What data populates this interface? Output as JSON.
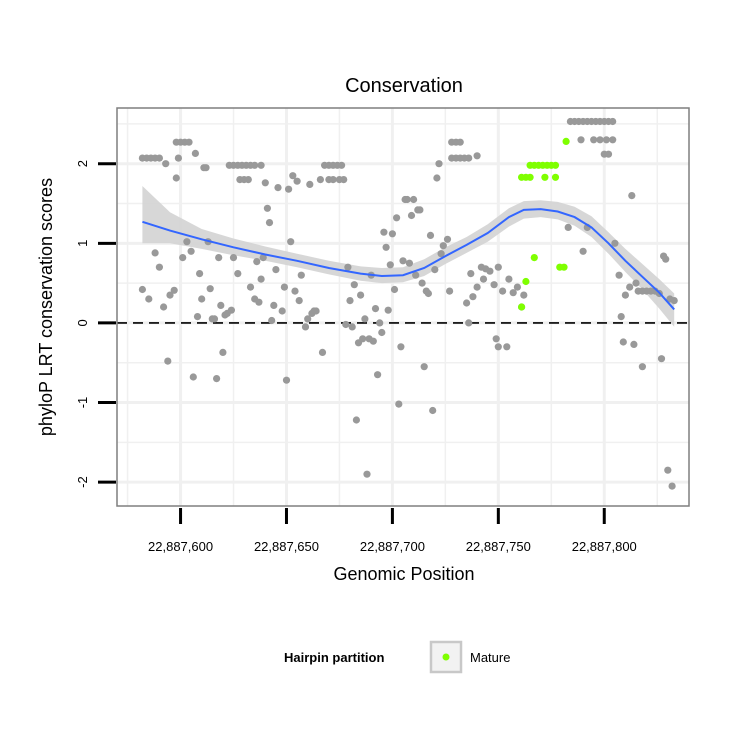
{
  "chart_data": {
    "type": "scatter",
    "title": "Conservation",
    "xlabel": "Genomic Position",
    "ylabel": "phyloP LRT conservation scores",
    "xlim": [
      22887570,
      22887840
    ],
    "ylim": [
      -2.3,
      2.7
    ],
    "x_ticks": [
      22887600,
      22887650,
      22887700,
      22887750,
      22887800
    ],
    "x_tick_labels": [
      "22,887,600",
      "22,887,650",
      "22,887,700",
      "22,887,750",
      "22,887,800"
    ],
    "y_ticks": [
      -2,
      -1,
      0,
      1,
      2
    ],
    "y_tick_labels": [
      "-2",
      "-1",
      "0",
      "1",
      "2"
    ],
    "grid": true,
    "reference_line": {
      "y": 0,
      "style": "dashed"
    },
    "colors": {
      "other": "#999999",
      "mature": "#7fff00",
      "smooth": "#3366ff",
      "ribbon": "#d3d3d3",
      "grid": "#f0f0f0"
    },
    "series": [
      {
        "key": "other",
        "points": [
          [
            22887582,
            2.07
          ],
          [
            22887584,
            2.07
          ],
          [
            22887586,
            2.07
          ],
          [
            22887588,
            2.07
          ],
          [
            22887590,
            2.07
          ],
          [
            22887593,
            2.0
          ],
          [
            22887582,
            0.42
          ],
          [
            22887585,
            0.3
          ],
          [
            22887588,
            0.88
          ],
          [
            22887590,
            0.7
          ],
          [
            22887592,
            0.2
          ],
          [
            22887594,
            -0.48
          ],
          [
            22887595,
            0.35
          ],
          [
            22887597,
            0.41
          ],
          [
            22887598,
            1.82
          ],
          [
            22887598,
            2.27
          ],
          [
            22887600,
            2.27
          ],
          [
            22887602,
            2.27
          ],
          [
            22887604,
            2.27
          ],
          [
            22887599,
            2.07
          ],
          [
            22887601,
            0.82
          ],
          [
            22887603,
            1.02
          ],
          [
            22887605,
            0.9
          ],
          [
            22887606,
            -0.68
          ],
          [
            22887607,
            2.13
          ],
          [
            22887608,
            0.08
          ],
          [
            22887609,
            0.62
          ],
          [
            22887610,
            0.3
          ],
          [
            22887611,
            1.95
          ],
          [
            22887612,
            1.95
          ],
          [
            22887613,
            1.02
          ],
          [
            22887614,
            0.43
          ],
          [
            22887615,
            0.05
          ],
          [
            22887616,
            0.05
          ],
          [
            22887617,
            -0.7
          ],
          [
            22887618,
            0.82
          ],
          [
            22887619,
            0.22
          ],
          [
            22887620,
            -0.37
          ],
          [
            22887621,
            0.1
          ],
          [
            22887622,
            0.12
          ],
          [
            22887623,
            1.98
          ],
          [
            22887625,
            1.98
          ],
          [
            22887627,
            1.98
          ],
          [
            22887629,
            1.98
          ],
          [
            22887631,
            1.98
          ],
          [
            22887633,
            1.98
          ],
          [
            22887635,
            1.98
          ],
          [
            22887638,
            1.98
          ],
          [
            22887624,
            0.16
          ],
          [
            22887625,
            0.82
          ],
          [
            22887627,
            0.62
          ],
          [
            22887628,
            1.8
          ],
          [
            22887630,
            1.8
          ],
          [
            22887632,
            1.8
          ],
          [
            22887633,
            0.45
          ],
          [
            22887635,
            0.3
          ],
          [
            22887636,
            0.77
          ],
          [
            22887637,
            0.26
          ],
          [
            22887638,
            0.55
          ],
          [
            22887639,
            0.82
          ],
          [
            22887640,
            1.76
          ],
          [
            22887641,
            1.44
          ],
          [
            22887642,
            1.26
          ],
          [
            22887643,
            0.03
          ],
          [
            22887644,
            0.22
          ],
          [
            22887645,
            0.67
          ],
          [
            22887646,
            1.7
          ],
          [
            22887648,
            0.15
          ],
          [
            22887649,
            0.45
          ],
          [
            22887650,
            -0.72
          ],
          [
            22887651,
            1.68
          ],
          [
            22887652,
            1.02
          ],
          [
            22887653,
            1.85
          ],
          [
            22887654,
            0.4
          ],
          [
            22887655,
            1.78
          ],
          [
            22887656,
            0.28
          ],
          [
            22887657,
            0.6
          ],
          [
            22887659,
            -0.05
          ],
          [
            22887660,
            0.05
          ],
          [
            22887661,
            1.74
          ],
          [
            22887662,
            0.12
          ],
          [
            22887663,
            0.15
          ],
          [
            22887664,
            0.15
          ],
          [
            22887666,
            1.8
          ],
          [
            22887667,
            -0.37
          ],
          [
            22887668,
            1.98
          ],
          [
            22887670,
            1.98
          ],
          [
            22887672,
            1.98
          ],
          [
            22887674,
            1.98
          ],
          [
            22887676,
            1.98
          ],
          [
            22887670,
            1.8
          ],
          [
            22887672,
            1.8
          ],
          [
            22887675,
            1.8
          ],
          [
            22887677,
            1.8
          ],
          [
            22887678,
            -0.02
          ],
          [
            22887679,
            0.7
          ],
          [
            22887680,
            0.28
          ],
          [
            22887681,
            -0.05
          ],
          [
            22887682,
            0.48
          ],
          [
            22887683,
            -1.22
          ],
          [
            22887684,
            -0.25
          ],
          [
            22887685,
            0.35
          ],
          [
            22887686,
            -0.2
          ],
          [
            22887687,
            0.05
          ],
          [
            22887688,
            -1.9
          ],
          [
            22887689,
            -0.2
          ],
          [
            22887690,
            0.6
          ],
          [
            22887691,
            -0.23
          ],
          [
            22887692,
            0.18
          ],
          [
            22887693,
            -0.65
          ],
          [
            22887694,
            0.0
          ],
          [
            22887695,
            -0.12
          ],
          [
            22887696,
            1.14
          ],
          [
            22887697,
            0.95
          ],
          [
            22887698,
            0.16
          ],
          [
            22887699,
            0.73
          ],
          [
            22887700,
            1.12
          ],
          [
            22887701,
            0.42
          ],
          [
            22887702,
            1.32
          ],
          [
            22887703,
            -1.02
          ],
          [
            22887704,
            -0.3
          ],
          [
            22887705,
            0.78
          ],
          [
            22887706,
            1.55
          ],
          [
            22887707,
            1.55
          ],
          [
            22887708,
            0.75
          ],
          [
            22887709,
            1.35
          ],
          [
            22887710,
            1.55
          ],
          [
            22887711,
            0.6
          ],
          [
            22887712,
            1.42
          ],
          [
            22887713,
            1.42
          ],
          [
            22887714,
            0.5
          ],
          [
            22887715,
            -0.55
          ],
          [
            22887716,
            0.4
          ],
          [
            22887717,
            0.37
          ],
          [
            22887718,
            1.1
          ],
          [
            22887719,
            -1.1
          ],
          [
            22887720,
            0.67
          ],
          [
            22887721,
            1.82
          ],
          [
            22887722,
            2.0
          ],
          [
            22887723,
            0.87
          ],
          [
            22887724,
            0.97
          ],
          [
            22887726,
            1.05
          ],
          [
            22887727,
            0.4
          ],
          [
            22887728,
            2.27
          ],
          [
            22887730,
            2.27
          ],
          [
            22887732,
            2.27
          ],
          [
            22887728,
            2.07
          ],
          [
            22887730,
            2.07
          ],
          [
            22887732,
            2.07
          ],
          [
            22887734,
            2.07
          ],
          [
            22887736,
            2.07
          ],
          [
            22887735,
            0.25
          ],
          [
            22887736,
            0.0
          ],
          [
            22887737,
            0.62
          ],
          [
            22887738,
            0.33
          ],
          [
            22887740,
            0.45
          ],
          [
            22887740,
            2.1
          ],
          [
            22887742,
            0.7
          ],
          [
            22887743,
            0.55
          ],
          [
            22887744,
            0.68
          ],
          [
            22887746,
            0.65
          ],
          [
            22887748,
            0.48
          ],
          [
            22887749,
            -0.2
          ],
          [
            22887750,
            -0.3
          ],
          [
            22887750,
            0.7
          ],
          [
            22887752,
            0.4
          ],
          [
            22887754,
            -0.3
          ],
          [
            22887755,
            0.55
          ],
          [
            22887757,
            0.38
          ],
          [
            22887759,
            0.45
          ],
          [
            22887761,
            0.2
          ],
          [
            22887762,
            0.35
          ],
          [
            22887783,
            1.2
          ],
          [
            22887784,
            2.53
          ],
          [
            22887786,
            2.53
          ],
          [
            22887788,
            2.53
          ],
          [
            22887790,
            2.53
          ],
          [
            22887792,
            2.53
          ],
          [
            22887794,
            2.53
          ],
          [
            22887796,
            2.53
          ],
          [
            22887798,
            2.53
          ],
          [
            22887800,
            2.53
          ],
          [
            22887802,
            2.53
          ],
          [
            22887804,
            2.53
          ],
          [
            22887789,
            2.3
          ],
          [
            22887790,
            0.9
          ],
          [
            22887792,
            1.2
          ],
          [
            22887795,
            2.3
          ],
          [
            22887798,
            2.3
          ],
          [
            22887801,
            2.3
          ],
          [
            22887804,
            2.3
          ],
          [
            22887800,
            2.12
          ],
          [
            22887802,
            2.12
          ],
          [
            22887805,
            1.0
          ],
          [
            22887807,
            0.6
          ],
          [
            22887808,
            0.08
          ],
          [
            22887809,
            -0.24
          ],
          [
            22887810,
            0.35
          ],
          [
            22887812,
            0.45
          ],
          [
            22887813,
            1.6
          ],
          [
            22887814,
            -0.27
          ],
          [
            22887815,
            0.5
          ],
          [
            22887816,
            0.4
          ],
          [
            22887818,
            -0.55
          ],
          [
            22887818,
            0.4
          ],
          [
            22887820,
            0.4
          ],
          [
            22887822,
            0.4
          ],
          [
            22887824,
            0.4
          ],
          [
            22887826,
            0.37
          ],
          [
            22887827,
            -0.45
          ],
          [
            22887828,
            0.84
          ],
          [
            22887829,
            0.8
          ],
          [
            22887830,
            -1.85
          ],
          [
            22887831,
            0.3
          ],
          [
            22887832,
            -2.05
          ],
          [
            22887833,
            0.28
          ]
        ]
      },
      {
        "key": "mature",
        "name": "Mature",
        "points": [
          [
            22887761,
            1.83
          ],
          [
            22887763,
            1.83
          ],
          [
            22887765,
            1.83
          ],
          [
            22887763,
            0.52
          ],
          [
            22887761,
            0.2
          ],
          [
            22887765,
            1.98
          ],
          [
            22887767,
            1.98
          ],
          [
            22887769,
            1.98
          ],
          [
            22887771,
            1.98
          ],
          [
            22887773,
            1.98
          ],
          [
            22887775,
            1.98
          ],
          [
            22887777,
            1.98
          ],
          [
            22887767,
            0.82
          ],
          [
            22887772,
            1.83
          ],
          [
            22887777,
            1.83
          ],
          [
            22887779,
            0.7
          ],
          [
            22887781,
            0.7
          ],
          [
            22887782,
            2.28
          ]
        ]
      }
    ],
    "smooth": {
      "x": [
        22887582,
        22887595,
        22887610,
        22887625,
        22887640,
        22887655,
        22887670,
        22887685,
        22887695,
        22887705,
        22887715,
        22887725,
        22887735,
        22887745,
        22887755,
        22887762,
        22887770,
        22887778,
        22887786,
        22887794,
        22887802,
        22887810,
        22887818,
        22887826,
        22887833
      ],
      "y": [
        1.27,
        1.16,
        1.05,
        0.95,
        0.86,
        0.78,
        0.69,
        0.62,
        0.59,
        0.6,
        0.69,
        0.84,
        0.98,
        1.13,
        1.33,
        1.42,
        1.43,
        1.4,
        1.33,
        1.2,
        1.0,
        0.78,
        0.58,
        0.38,
        0.17
      ],
      "lower": [
        1.0,
        1.0,
        0.93,
        0.85,
        0.78,
        0.7,
        0.61,
        0.53,
        0.5,
        0.51,
        0.59,
        0.74,
        0.88,
        1.02,
        1.21,
        1.31,
        1.33,
        1.3,
        1.22,
        1.08,
        0.87,
        0.64,
        0.42,
        0.18,
        -0.05
      ],
      "upper": [
        1.72,
        1.39,
        1.18,
        1.06,
        0.96,
        0.87,
        0.78,
        0.71,
        0.69,
        0.7,
        0.8,
        0.95,
        1.08,
        1.24,
        1.44,
        1.53,
        1.54,
        1.52,
        1.46,
        1.34,
        1.14,
        0.93,
        0.74,
        0.55,
        0.37
      ]
    }
  },
  "legend": {
    "title": "Hairpin partition",
    "items": [
      {
        "label": "Mature",
        "color": "#7fff00"
      }
    ]
  }
}
